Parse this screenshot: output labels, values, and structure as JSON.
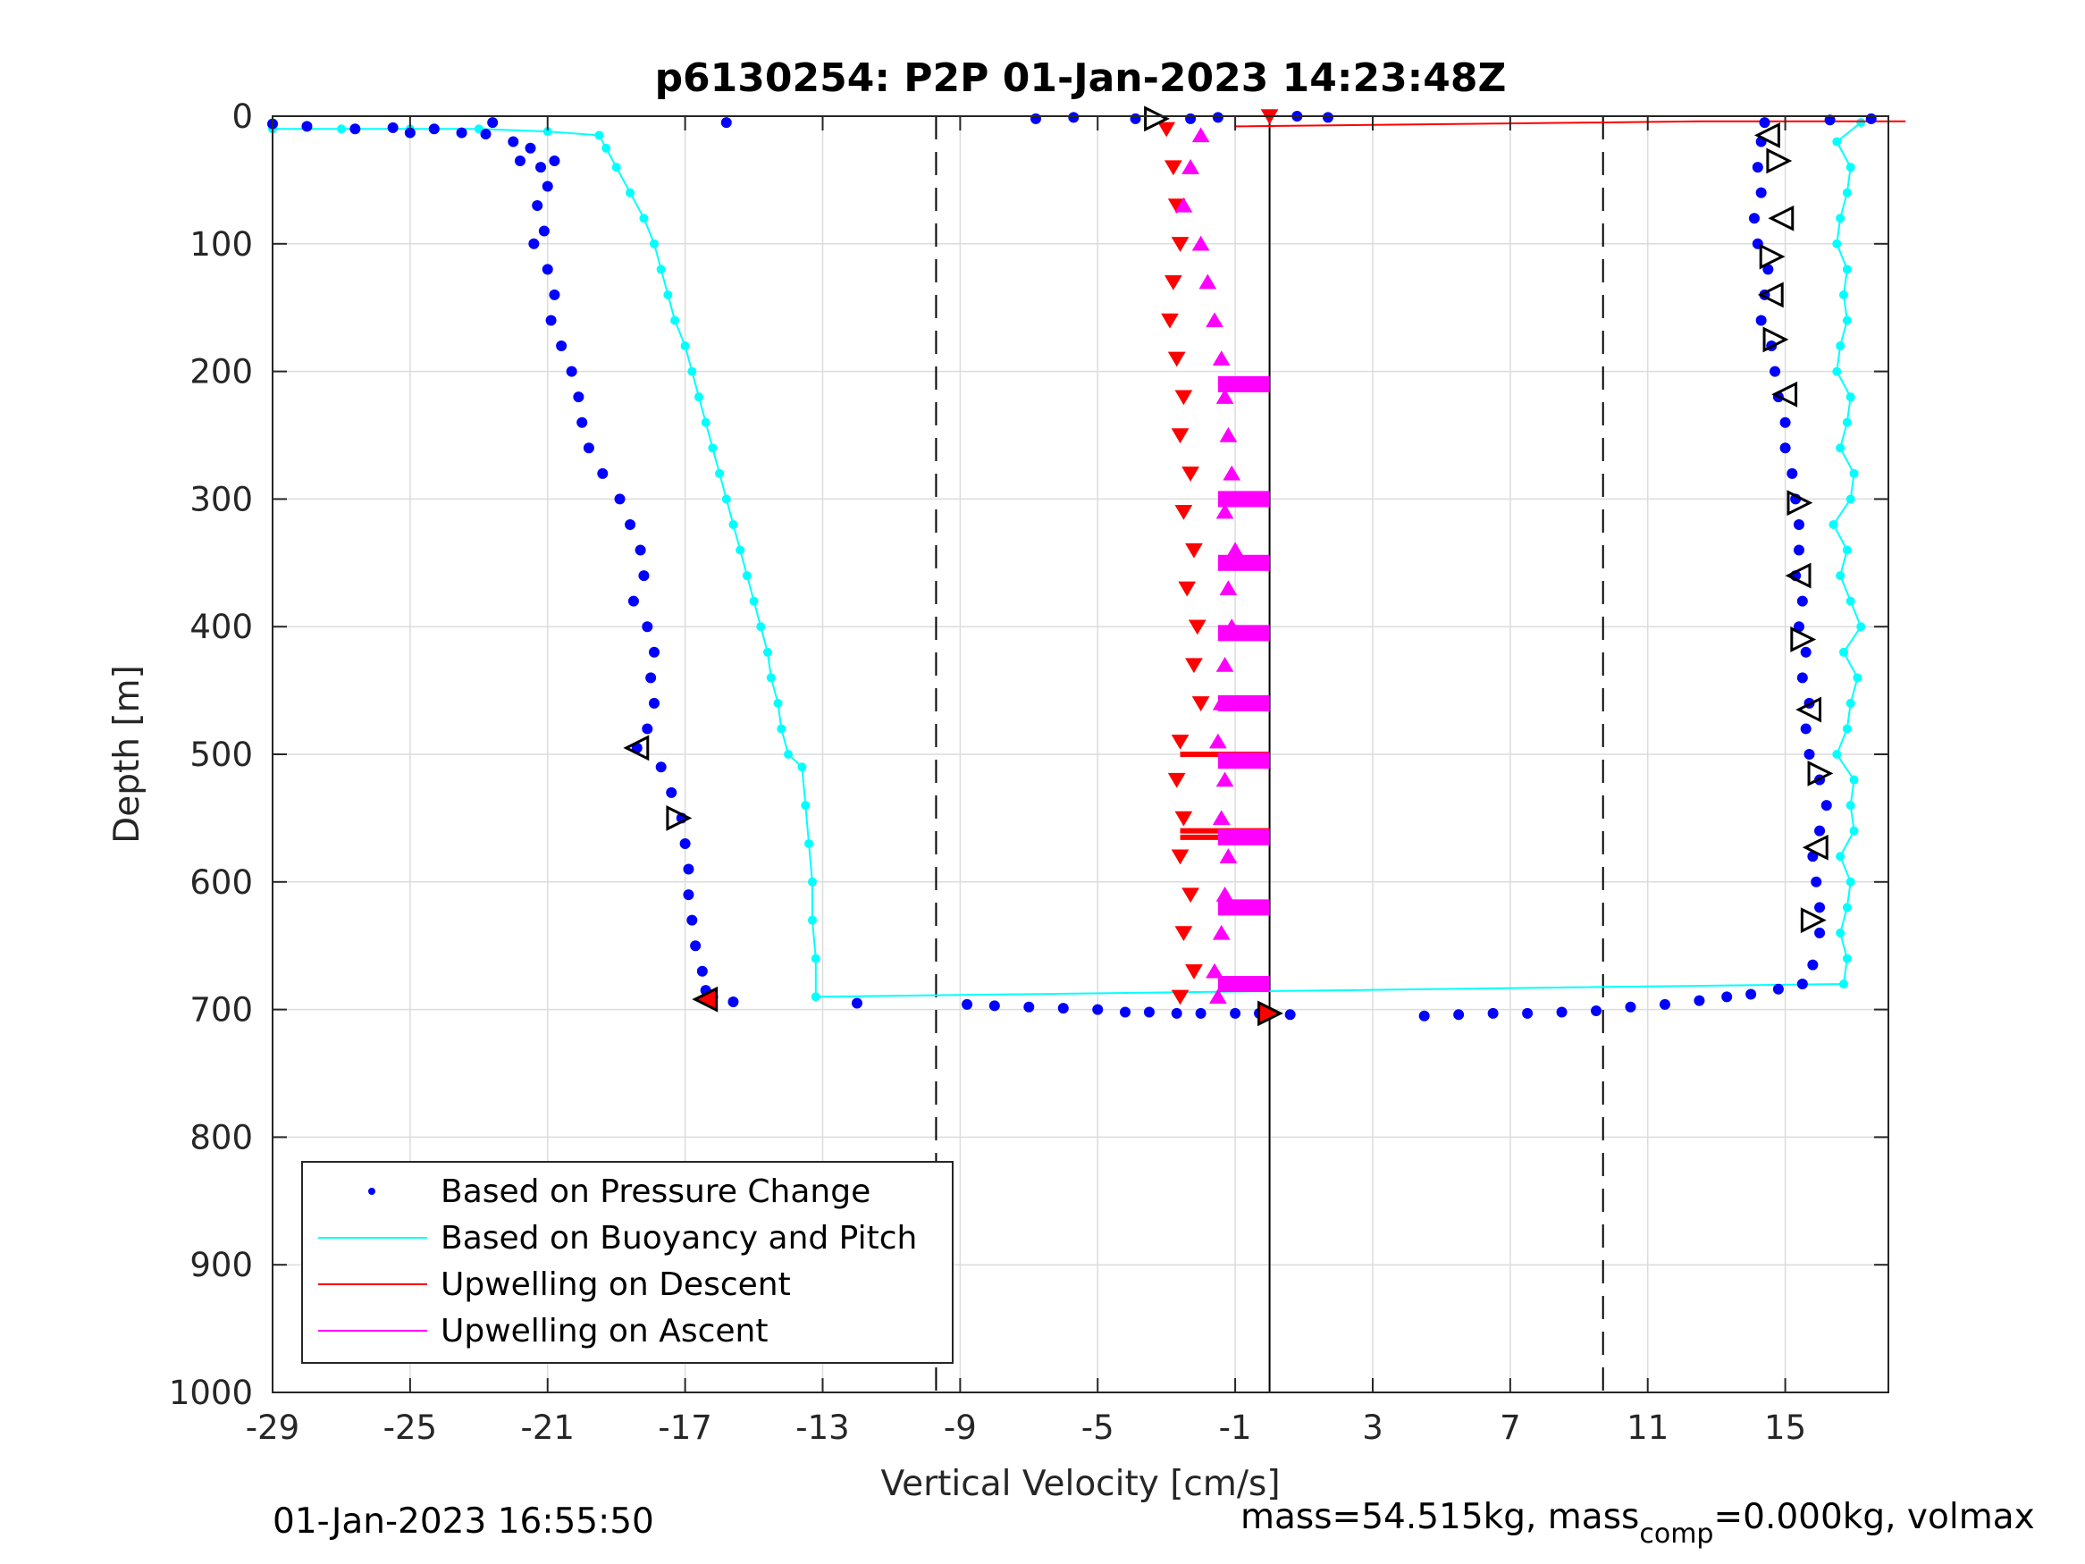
{
  "chart_data": {
    "type": "scatter",
    "title": "p6130254: P2P 01-Jan-2023 14:23:48Z",
    "xlabel": "Vertical Velocity [cm/s]",
    "ylabel": "Depth [m]",
    "xlim": [
      -29,
      18
    ],
    "ylim": [
      0,
      1000
    ],
    "y_reversed": true,
    "grid": true,
    "xticks": [
      -29,
      -25,
      -21,
      -17,
      -13,
      -9,
      -5,
      -1,
      3,
      7,
      11,
      15
    ],
    "xtick_labels": [
      "-29",
      "-25",
      "-21",
      "-17",
      "-13",
      "-9",
      "-5",
      "-1",
      "3",
      "7",
      "11",
      "15"
    ],
    "yticks": [
      0,
      100,
      200,
      300,
      400,
      500,
      600,
      700,
      800,
      900,
      1000
    ],
    "ytick_labels": [
      "0",
      "100",
      "200",
      "300",
      "400",
      "500",
      "600",
      "700",
      "800",
      "900",
      "1000"
    ],
    "reference_lines": {
      "dashed_x": [
        -9.7,
        9.7
      ],
      "solid_x": [
        0
      ]
    },
    "legend": {
      "placement": "bottom-left",
      "entries": [
        {
          "label": "Based on Pressure Change",
          "color": "#0000ff",
          "style": "dot"
        },
        {
          "label": "Based on Buoyancy and Pitch",
          "color": "#00ffff",
          "style": "line"
        },
        {
          "label": "Upwelling on Descent",
          "color": "#ff0000",
          "style": "line"
        },
        {
          "label": "Upwelling on Ascent",
          "color": "#ff00ff",
          "style": "line"
        }
      ]
    },
    "series": [
      {
        "name": "Based on Pressure Change (descent)",
        "color": "#0000ff",
        "marker": "dot",
        "points": [
          [
            -29.0,
            6
          ],
          [
            -28.0,
            8
          ],
          [
            -26.6,
            10
          ],
          [
            -25.5,
            9
          ],
          [
            -25.0,
            13
          ],
          [
            -24.3,
            10
          ],
          [
            -23.5,
            13
          ],
          [
            -22.8,
            14
          ],
          [
            -22.6,
            5
          ],
          [
            -22.0,
            20
          ],
          [
            -21.5,
            25
          ],
          [
            -21.8,
            35
          ],
          [
            -21.2,
            40
          ],
          [
            -20.8,
            35
          ],
          [
            -21.0,
            55
          ],
          [
            -21.3,
            70
          ],
          [
            -21.1,
            90
          ],
          [
            -21.4,
            100
          ],
          [
            -21.0,
            120
          ],
          [
            -20.8,
            140
          ],
          [
            -20.9,
            160
          ],
          [
            -20.6,
            180
          ],
          [
            -20.3,
            200
          ],
          [
            -20.1,
            220
          ],
          [
            -20.0,
            240
          ],
          [
            -19.8,
            260
          ],
          [
            -19.4,
            280
          ],
          [
            -18.9,
            300
          ],
          [
            -18.6,
            320
          ],
          [
            -18.3,
            340
          ],
          [
            -18.2,
            360
          ],
          [
            -18.5,
            380
          ],
          [
            -18.1,
            400
          ],
          [
            -17.9,
            420
          ],
          [
            -18.0,
            440
          ],
          [
            -17.9,
            460
          ],
          [
            -18.1,
            480
          ],
          [
            -18.4,
            495
          ],
          [
            -17.7,
            510
          ],
          [
            -17.4,
            530
          ],
          [
            -17.1,
            550
          ],
          [
            -17.0,
            570
          ],
          [
            -16.9,
            590
          ],
          [
            -16.9,
            610
          ],
          [
            -16.8,
            630
          ],
          [
            -16.7,
            650
          ],
          [
            -16.5,
            670
          ],
          [
            -16.4,
            685
          ],
          [
            -16.2,
            690
          ],
          [
            -15.6,
            694
          ],
          [
            -15.8,
            5
          ],
          [
            -12.0,
            695
          ],
          [
            -8.8,
            696
          ],
          [
            -8.0,
            697
          ],
          [
            -7.0,
            698
          ],
          [
            -6.0,
            699
          ],
          [
            -5.0,
            700
          ],
          [
            -4.2,
            702
          ],
          [
            -3.5,
            702
          ],
          [
            -2.7,
            703
          ],
          [
            -2.0,
            703
          ],
          [
            -1.0,
            703
          ],
          [
            -0.3,
            703
          ],
          [
            0.6,
            704
          ],
          [
            -6.8,
            2
          ],
          [
            -5.7,
            1
          ],
          [
            -3.9,
            2
          ],
          [
            -2.3,
            2
          ],
          [
            -1.5,
            1
          ],
          [
            0.8,
            0
          ],
          [
            1.7,
            1
          ]
        ]
      },
      {
        "name": "Based on Pressure Change (ascent)",
        "color": "#0000ff",
        "marker": "dot",
        "points": [
          [
            4.5,
            705
          ],
          [
            5.5,
            704
          ],
          [
            6.5,
            703
          ],
          [
            7.5,
            703
          ],
          [
            8.5,
            702
          ],
          [
            9.5,
            701
          ],
          [
            10.5,
            698
          ],
          [
            11.5,
            696
          ],
          [
            12.5,
            693
          ],
          [
            13.3,
            690
          ],
          [
            14.0,
            688
          ],
          [
            14.8,
            684
          ],
          [
            15.5,
            680
          ],
          [
            15.8,
            665
          ],
          [
            16.0,
            640
          ],
          [
            16.0,
            620
          ],
          [
            15.9,
            600
          ],
          [
            15.8,
            580
          ],
          [
            16.0,
            560
          ],
          [
            16.2,
            540
          ],
          [
            16.0,
            520
          ],
          [
            15.7,
            500
          ],
          [
            15.6,
            480
          ],
          [
            15.7,
            460
          ],
          [
            15.5,
            440
          ],
          [
            15.6,
            420
          ],
          [
            15.4,
            400
          ],
          [
            15.5,
            380
          ],
          [
            15.3,
            360
          ],
          [
            15.4,
            340
          ],
          [
            15.4,
            320
          ],
          [
            15.3,
            300
          ],
          [
            15.2,
            280
          ],
          [
            15.0,
            260
          ],
          [
            15.0,
            240
          ],
          [
            14.8,
            220
          ],
          [
            14.7,
            200
          ],
          [
            14.6,
            180
          ],
          [
            14.3,
            160
          ],
          [
            14.4,
            140
          ],
          [
            14.5,
            120
          ],
          [
            14.2,
            100
          ],
          [
            14.1,
            80
          ],
          [
            14.3,
            60
          ],
          [
            14.2,
            40
          ],
          [
            14.3,
            20
          ],
          [
            14.4,
            5
          ],
          [
            16.3,
            3
          ],
          [
            17.5,
            2
          ]
        ]
      },
      {
        "name": "Based on Buoyancy and Pitch",
        "color": "#00ffff",
        "marker": "line-dot",
        "points": [
          [
            -29.0,
            10
          ],
          [
            -27.0,
            10
          ],
          [
            -25.0,
            10
          ],
          [
            -23.0,
            10
          ],
          [
            -21.0,
            12
          ],
          [
            -19.5,
            15
          ],
          [
            -19.3,
            25
          ],
          [
            -19.0,
            40
          ],
          [
            -18.6,
            60
          ],
          [
            -18.2,
            80
          ],
          [
            -17.9,
            100
          ],
          [
            -17.7,
            120
          ],
          [
            -17.5,
            140
          ],
          [
            -17.3,
            160
          ],
          [
            -17.0,
            180
          ],
          [
            -16.8,
            200
          ],
          [
            -16.6,
            220
          ],
          [
            -16.4,
            240
          ],
          [
            -16.2,
            260
          ],
          [
            -16.0,
            280
          ],
          [
            -15.8,
            300
          ],
          [
            -15.6,
            320
          ],
          [
            -15.4,
            340
          ],
          [
            -15.2,
            360
          ],
          [
            -15.0,
            380
          ],
          [
            -14.8,
            400
          ],
          [
            -14.6,
            420
          ],
          [
            -14.5,
            440
          ],
          [
            -14.3,
            460
          ],
          [
            -14.2,
            480
          ],
          [
            -14.0,
            500
          ],
          [
            -13.6,
            510
          ],
          [
            -13.5,
            540
          ],
          [
            -13.4,
            570
          ],
          [
            -13.3,
            600
          ],
          [
            -13.3,
            630
          ],
          [
            -13.2,
            660
          ],
          [
            -13.2,
            690
          ],
          [
            16.7,
            680
          ],
          [
            16.8,
            660
          ],
          [
            16.6,
            640
          ],
          [
            16.8,
            620
          ],
          [
            16.9,
            600
          ],
          [
            16.6,
            580
          ],
          [
            17.0,
            560
          ],
          [
            16.9,
            540
          ],
          [
            17.0,
            520
          ],
          [
            16.5,
            500
          ],
          [
            16.8,
            480
          ],
          [
            16.9,
            460
          ],
          [
            17.1,
            440
          ],
          [
            16.7,
            420
          ],
          [
            17.2,
            400
          ],
          [
            16.9,
            380
          ],
          [
            16.6,
            360
          ],
          [
            16.8,
            340
          ],
          [
            16.4,
            320
          ],
          [
            16.9,
            300
          ],
          [
            17.0,
            280
          ],
          [
            16.6,
            260
          ],
          [
            16.8,
            240
          ],
          [
            16.9,
            220
          ],
          [
            16.5,
            200
          ],
          [
            16.6,
            180
          ],
          [
            16.8,
            160
          ],
          [
            16.7,
            140
          ],
          [
            16.8,
            120
          ],
          [
            16.5,
            100
          ],
          [
            16.6,
            80
          ],
          [
            16.8,
            60
          ],
          [
            16.9,
            40
          ],
          [
            16.5,
            20
          ],
          [
            17.2,
            5
          ]
        ]
      },
      {
        "name": "Upwelling on Descent",
        "color": "#ff0000",
        "marker": "triangle-down",
        "points": [
          [
            -3.0,
            10
          ],
          [
            -2.8,
            40
          ],
          [
            -2.7,
            70
          ],
          [
            -2.6,
            100
          ],
          [
            -2.8,
            130
          ],
          [
            -2.9,
            160
          ],
          [
            -2.7,
            190
          ],
          [
            -2.5,
            220
          ],
          [
            -2.6,
            250
          ],
          [
            -2.3,
            280
          ],
          [
            -2.5,
            310
          ],
          [
            -2.2,
            340
          ],
          [
            -2.4,
            370
          ],
          [
            -2.1,
            400
          ],
          [
            -2.2,
            430
          ],
          [
            -2.0,
            460
          ],
          [
            -2.6,
            490
          ],
          [
            -2.7,
            520
          ],
          [
            -2.5,
            550
          ],
          [
            -2.6,
            580
          ],
          [
            -2.3,
            610
          ],
          [
            -2.5,
            640
          ],
          [
            -2.2,
            670
          ],
          [
            -2.6,
            690
          ],
          [
            0.0,
            0
          ]
        ],
        "lines_at_depth": [
          500,
          560,
          565
        ],
        "spike": [
          [
            -1.0,
            8
          ],
          [
            9.5,
            5
          ],
          [
            12.5,
            4
          ],
          [
            18.5,
            4
          ]
        ]
      },
      {
        "name": "Upwelling on Ascent",
        "color": "#ff00ff",
        "marker": "triangle-up",
        "points": [
          [
            -2.0,
            15
          ],
          [
            -2.3,
            40
          ],
          [
            -2.5,
            70
          ],
          [
            -2.0,
            100
          ],
          [
            -1.8,
            130
          ],
          [
            -1.6,
            160
          ],
          [
            -1.4,
            190
          ],
          [
            -1.3,
            220
          ],
          [
            -1.2,
            250
          ],
          [
            -1.1,
            280
          ],
          [
            -1.3,
            310
          ],
          [
            -1.0,
            340
          ],
          [
            -1.2,
            370
          ],
          [
            -1.1,
            400
          ],
          [
            -1.3,
            430
          ],
          [
            -1.4,
            460
          ],
          [
            -1.5,
            490
          ],
          [
            -1.3,
            520
          ],
          [
            -1.4,
            550
          ],
          [
            -1.2,
            580
          ],
          [
            -1.3,
            610
          ],
          [
            -1.4,
            640
          ],
          [
            -1.6,
            670
          ],
          [
            -1.5,
            690
          ]
        ],
        "lines_at_depth": [
          210,
          300,
          350,
          405,
          460,
          505,
          565,
          620,
          680
        ]
      },
      {
        "name": "Markers",
        "color": "#000000",
        "marker": "open-triangle",
        "points": [
          [
            -3.3,
            2
          ],
          [
            14.5,
            15
          ],
          [
            14.8,
            35
          ],
          [
            14.9,
            80
          ],
          [
            14.6,
            110
          ],
          [
            14.6,
            140
          ],
          [
            14.7,
            175
          ],
          [
            15.0,
            218
          ],
          [
            15.4,
            303
          ],
          [
            15.4,
            360
          ],
          [
            15.5,
            410
          ],
          [
            15.7,
            465
          ],
          [
            16.0,
            515
          ],
          [
            15.9,
            573
          ],
          [
            15.8,
            630
          ],
          [
            -18.4,
            495
          ],
          [
            -17.2,
            550
          ],
          [
            -16.4,
            692
          ],
          [
            0.0,
            703
          ]
        ]
      }
    ]
  },
  "footer": {
    "left": "01-Jan-2023 16:55:50",
    "right_prefix": "mass=54.515kg, mass",
    "right_subscript": "comp",
    "right_suffix": "=0.000kg, volmax"
  }
}
